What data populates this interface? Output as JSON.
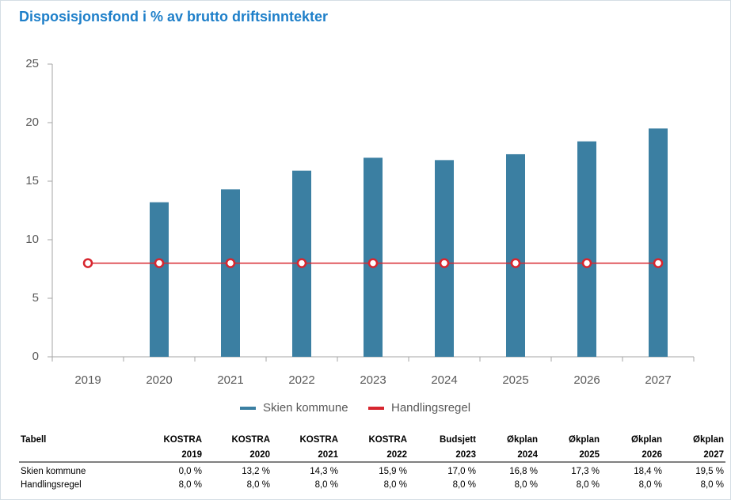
{
  "chart_data": {
    "type": "bar",
    "title": "Disposisjonsfond i % av brutto driftsinntekter",
    "categories": [
      "2019",
      "2020",
      "2021",
      "2022",
      "2023",
      "2024",
      "2025",
      "2026",
      "2027"
    ],
    "series": [
      {
        "name": "Skien kommune",
        "type": "bar",
        "color": "#3b7fa2",
        "values": [
          0,
          13.2,
          14.3,
          15.9,
          17.0,
          16.8,
          17.3,
          18.4,
          19.5
        ]
      },
      {
        "name": "Handlingsregel",
        "type": "line",
        "color": "#d7262f",
        "values": [
          8,
          8,
          8,
          8,
          8,
          8,
          8,
          8,
          8
        ]
      }
    ],
    "ylim": [
      0,
      25
    ],
    "yticks": [
      0,
      5,
      10,
      15,
      20,
      25
    ],
    "grid": false,
    "legend": "bottom"
  },
  "table": {
    "header": {
      "label": "Tabell",
      "columns": [
        [
          "KOSTRA",
          "2019"
        ],
        [
          "KOSTRA",
          "2020"
        ],
        [
          "KOSTRA",
          "2021"
        ],
        [
          "KOSTRA",
          "2022"
        ],
        [
          "Budsjett",
          "2023"
        ],
        [
          "Økplan",
          "2024"
        ],
        [
          "Økplan",
          "2025"
        ],
        [
          "Økplan",
          "2026"
        ],
        [
          "Økplan",
          "2027"
        ]
      ]
    },
    "rows": [
      [
        "Skien kommune",
        "0,0 %",
        "13,2 %",
        "14,3 %",
        "15,9 %",
        "17,0 %",
        "16,8 %",
        "17,3 %",
        "18,4 %",
        "19,5 %"
      ],
      [
        "Handlingsregel",
        "8,0 %",
        "8,0 %",
        "8,0 %",
        "8,0 %",
        "8,0 %",
        "8,0 %",
        "8,0 %",
        "8,0 %",
        "8,0 %"
      ]
    ]
  }
}
